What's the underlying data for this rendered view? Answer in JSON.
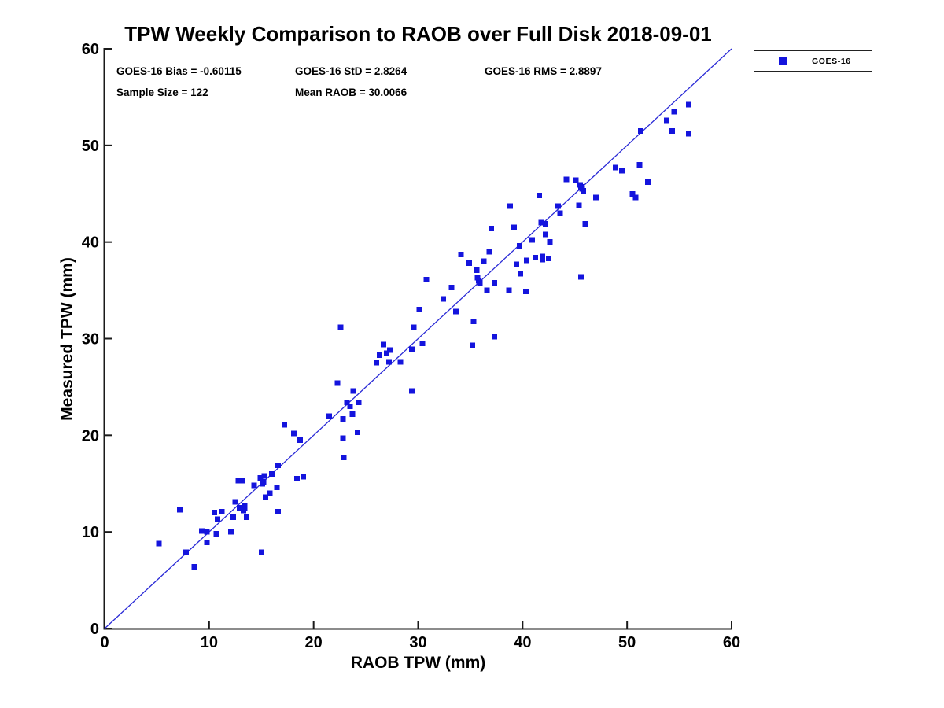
{
  "title": "TPW Weekly Comparison to RAOB over Full Disk 2018-09-01",
  "stats": {
    "bias": "GOES-16 Bias = -0.60115",
    "std": "GOES-16 StD = 2.8264",
    "rms": "GOES-16 RMS = 2.8897",
    "sample_size": "Sample Size = 122",
    "mean_raob": "Mean RAOB = 30.0066"
  },
  "legend": {
    "label": "GOES-16",
    "position": "top-right-outside"
  },
  "colors": {
    "marker": "#1414dd",
    "reference_line": "#2a2ad6",
    "axis": "#1a1a1a",
    "text": "#000000",
    "background": "#ffffff"
  },
  "chart_data": {
    "type": "scatter",
    "title": "TPW Weekly Comparison to RAOB over Full Disk 2018-09-01",
    "xlabel": "RAOB TPW (mm)",
    "ylabel": "Measured TPW (mm)",
    "xlim": [
      0,
      60
    ],
    "ylim": [
      0,
      60
    ],
    "xticks": [
      0,
      10,
      20,
      30,
      40,
      50,
      60
    ],
    "yticks": [
      0,
      10,
      20,
      30,
      40,
      50,
      60
    ],
    "grid": false,
    "legend_position": "top-right outside plot",
    "reference_line": {
      "x": [
        0,
        60
      ],
      "y": [
        0,
        60
      ],
      "style": "solid"
    },
    "series": [
      {
        "name": "GOES-16",
        "marker": "square",
        "points": [
          [
            7.2,
            12.3
          ],
          [
            5.2,
            8.8
          ],
          [
            7.8,
            7.9
          ],
          [
            8.6,
            6.4
          ],
          [
            9.3,
            10.1
          ],
          [
            9.8,
            10.0
          ],
          [
            9.8,
            8.9
          ],
          [
            10.5,
            12.0
          ],
          [
            10.8,
            11.3
          ],
          [
            11.2,
            12.1
          ],
          [
            10.7,
            9.8
          ],
          [
            12.1,
            10.0
          ],
          [
            12.3,
            11.5
          ],
          [
            12.5,
            13.1
          ],
          [
            12.9,
            12.5
          ],
          [
            13.3,
            12.2
          ],
          [
            13.4,
            12.7
          ],
          [
            13.6,
            11.5
          ],
          [
            12.8,
            15.3
          ],
          [
            13.2,
            15.3
          ],
          [
            14.3,
            14.8
          ],
          [
            14.9,
            15.6
          ],
          [
            15.1,
            15.0
          ],
          [
            15.3,
            15.8
          ],
          [
            15.4,
            13.6
          ],
          [
            15.8,
            14.0
          ],
          [
            16.0,
            16.0
          ],
          [
            16.5,
            14.6
          ],
          [
            16.6,
            16.9
          ],
          [
            15.0,
            7.9
          ],
          [
            16.6,
            12.1
          ],
          [
            26.0,
            27.5
          ],
          [
            27.2,
            27.6
          ],
          [
            28.3,
            27.6
          ],
          [
            22.3,
            25.4
          ],
          [
            23.8,
            24.6
          ],
          [
            29.4,
            24.6
          ],
          [
            23.2,
            23.4
          ],
          [
            24.3,
            23.4
          ],
          [
            23.7,
            22.2
          ],
          [
            21.5,
            22.0
          ],
          [
            22.8,
            21.7
          ],
          [
            17.2,
            21.1
          ],
          [
            18.1,
            20.2
          ],
          [
            18.7,
            19.5
          ],
          [
            24.2,
            20.3
          ],
          [
            22.8,
            19.7
          ],
          [
            22.9,
            17.7
          ],
          [
            18.4,
            15.5
          ],
          [
            19.0,
            15.7
          ],
          [
            34.9,
            37.8
          ],
          [
            36.3,
            38.0
          ],
          [
            35.6,
            37.1
          ],
          [
            35.7,
            36.3
          ],
          [
            35.9,
            35.8
          ],
          [
            30.8,
            36.1
          ],
          [
            37.3,
            35.8
          ],
          [
            36.6,
            35.0
          ],
          [
            38.7,
            35.0
          ],
          [
            33.2,
            35.3
          ],
          [
            32.4,
            34.1
          ],
          [
            30.1,
            33.0
          ],
          [
            33.6,
            32.8
          ],
          [
            35.3,
            31.8
          ],
          [
            22.6,
            31.2
          ],
          [
            29.6,
            31.2
          ],
          [
            37.3,
            30.2
          ],
          [
            35.2,
            29.3
          ],
          [
            30.4,
            29.5
          ],
          [
            26.7,
            29.4
          ],
          [
            29.4,
            28.9
          ],
          [
            27.3,
            28.8
          ],
          [
            26.3,
            28.3
          ],
          [
            48.9,
            47.7
          ],
          [
            49.5,
            47.4
          ],
          [
            44.2,
            46.5
          ],
          [
            45.1,
            46.4
          ],
          [
            45.5,
            45.9
          ],
          [
            45.7,
            45.5
          ],
          [
            45.8,
            45.3
          ],
          [
            41.6,
            44.8
          ],
          [
            47.0,
            44.6
          ],
          [
            38.8,
            43.7
          ],
          [
            43.4,
            43.7
          ],
          [
            45.4,
            43.8
          ],
          [
            43.6,
            43.0
          ],
          [
            41.8,
            42.0
          ],
          [
            42.2,
            41.9
          ],
          [
            39.2,
            41.5
          ],
          [
            46.0,
            41.9
          ],
          [
            37.0,
            41.4
          ],
          [
            42.2,
            40.8
          ],
          [
            40.9,
            40.2
          ],
          [
            42.6,
            40.0
          ],
          [
            39.7,
            39.6
          ],
          [
            36.8,
            39.0
          ],
          [
            34.1,
            38.7
          ],
          [
            40.4,
            38.1
          ],
          [
            41.2,
            38.4
          ],
          [
            41.9,
            38.5
          ],
          [
            42.5,
            38.3
          ],
          [
            39.4,
            37.7
          ],
          [
            39.8,
            36.7
          ],
          [
            45.6,
            36.4
          ],
          [
            40.3,
            34.9
          ],
          [
            55.9,
            54.2
          ],
          [
            54.5,
            53.5
          ],
          [
            53.8,
            52.6
          ],
          [
            54.3,
            51.5
          ],
          [
            55.9,
            51.2
          ],
          [
            51.3,
            51.5
          ],
          [
            51.2,
            48.0
          ],
          [
            52.0,
            46.2
          ],
          [
            50.5,
            45.0
          ],
          [
            50.8,
            44.6
          ],
          [
            13.4,
            12.4
          ],
          [
            15.2,
            15.2
          ],
          [
            23.5,
            23.0
          ],
          [
            41.9,
            38.2
          ],
          [
            45.6,
            45.7
          ],
          [
            35.8,
            36.0
          ],
          [
            27.0,
            28.5
          ]
        ]
      }
    ]
  }
}
